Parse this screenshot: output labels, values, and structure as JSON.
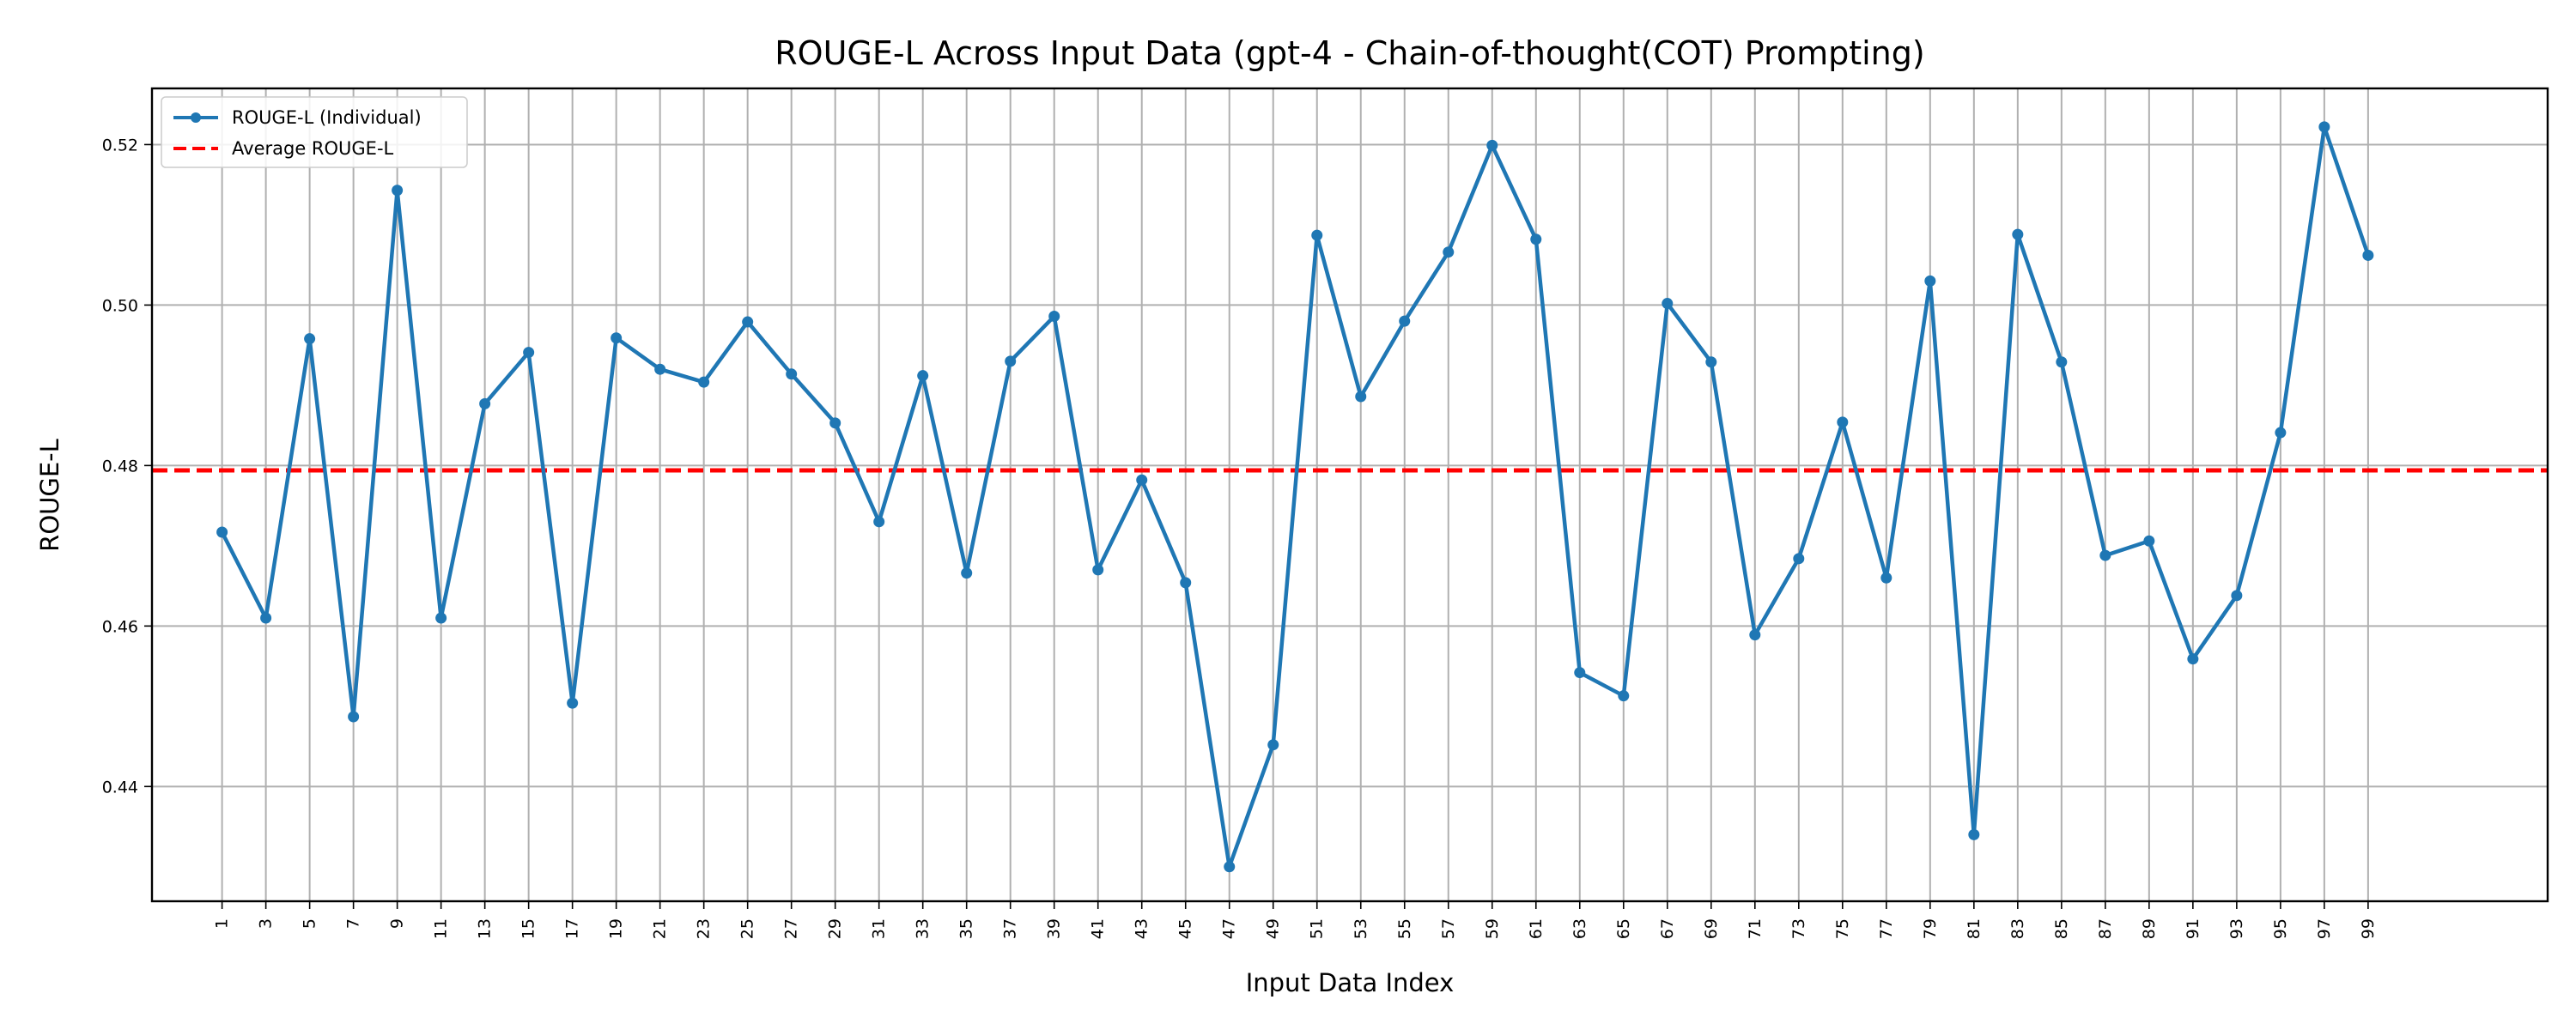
{
  "chart_data": {
    "type": "line",
    "title": "ROUGE-L Across Input Data (gpt-4 - Chain-of-thought(COT) Prompting)",
    "xlabel": "Input Data Index",
    "ylabel": "ROUGE-L",
    "xlim": [
      -2.2,
      107.2
    ],
    "ylim": [
      0.4257,
      0.527
    ],
    "grid": true,
    "legend_position": "top-left",
    "x": [
      1,
      3,
      5,
      7,
      9,
      11,
      13,
      15,
      17,
      19,
      21,
      23,
      25,
      27,
      29,
      31,
      33,
      35,
      37,
      39,
      41,
      43,
      45,
      47,
      49,
      51,
      53,
      55,
      57,
      59,
      61,
      63,
      65,
      67,
      69,
      71,
      73,
      75,
      77,
      79,
      81,
      83,
      85,
      87,
      89,
      91,
      93,
      95,
      97,
      99
    ],
    "x_ticks": [
      1,
      3,
      5,
      7,
      9,
      11,
      13,
      15,
      17,
      19,
      21,
      23,
      25,
      27,
      29,
      31,
      33,
      35,
      37,
      39,
      41,
      43,
      45,
      47,
      49,
      51,
      53,
      55,
      57,
      59,
      61,
      63,
      65,
      67,
      69,
      71,
      73,
      75,
      77,
      79,
      81,
      83,
      85,
      87,
      89,
      91,
      93,
      95,
      97,
      99
    ],
    "y_ticks": [
      0.44,
      0.46,
      0.48,
      0.5,
      0.52
    ],
    "y_tick_labels": [
      "0.44",
      "0.46",
      "0.48",
      "0.50",
      "0.52"
    ],
    "series": [
      {
        "name": "ROUGE-L (Individual)",
        "color": "#1f77b4",
        "style": "solid-with-markers",
        "values": [
          0.4717,
          0.461,
          0.4958,
          0.4487,
          0.5143,
          0.461,
          0.4877,
          0.4941,
          0.4504,
          0.4959,
          0.492,
          0.4904,
          0.4979,
          0.4914,
          0.4853,
          0.473,
          0.4912,
          0.4666,
          0.493,
          0.4986,
          0.467,
          0.4782,
          0.4654,
          0.43,
          0.4452,
          0.5087,
          0.4886,
          0.498,
          0.5066,
          0.5199,
          0.5082,
          0.4542,
          0.4513,
          0.5002,
          0.4929,
          0.4589,
          0.4684,
          0.4854,
          0.466,
          0.503,
          0.434,
          0.5088,
          0.4929,
          0.4688,
          0.4706,
          0.4559,
          0.4638,
          0.4841,
          0.5222,
          0.5062
        ]
      },
      {
        "name": "Average ROUGE-L",
        "color": "#ff0000",
        "style": "dashed",
        "value": 0.4794
      }
    ]
  }
}
